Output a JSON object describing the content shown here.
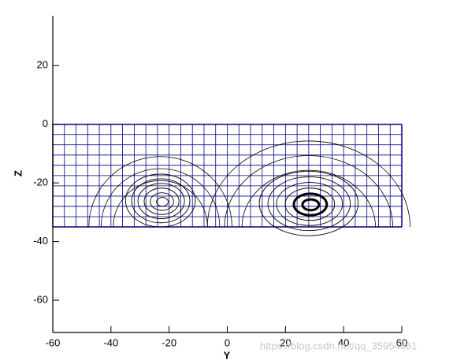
{
  "chart_data": {
    "type": "streamline",
    "xlabel": "Y",
    "ylabel": "Z",
    "xlim": [
      -60,
      60
    ],
    "ylim": [
      -71,
      37
    ],
    "xticks": [
      -60,
      -40,
      -20,
      0,
      20,
      40,
      60
    ],
    "yticks": [
      -60,
      -40,
      -20,
      0,
      20
    ],
    "mesh": {
      "x": [
        -60,
        60
      ],
      "z": [
        -35,
        0
      ],
      "columns": 30,
      "rows": 10,
      "color": "#000080"
    },
    "vortices": {
      "x": [
        -23,
        28
      ],
      "z": [
        -26,
        -27
      ],
      "rx": [
        12,
        17
      ],
      "rz": [
        9,
        11
      ],
      "color": "#000000"
    },
    "watermark": "https://blog.csdn.net/qq_35954661"
  }
}
